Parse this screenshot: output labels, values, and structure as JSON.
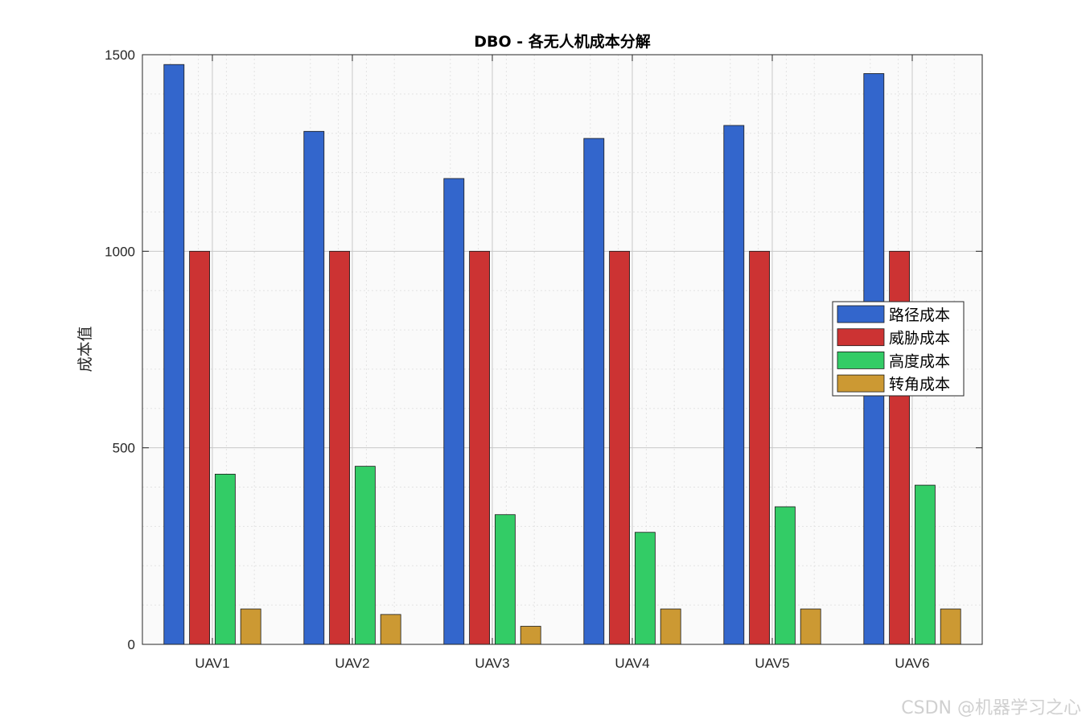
{
  "chart_data": {
    "type": "bar",
    "title": "DBO - 各无人机成本分解",
    "xlabel": "",
    "ylabel": "成本值",
    "categories": [
      "UAV1",
      "UAV2",
      "UAV3",
      "UAV4",
      "UAV5",
      "UAV6"
    ],
    "ylim": [
      0,
      1500
    ],
    "yticks": [
      0,
      500,
      1000,
      1500
    ],
    "grid": true,
    "legend_position": "right",
    "series": [
      {
        "name": "路径成本",
        "color": "#3366cc",
        "values": [
          1475,
          1305,
          1185,
          1287,
          1320,
          1452
        ]
      },
      {
        "name": "威胁成本",
        "color": "#cc3333",
        "values": [
          1000,
          1000,
          1000,
          1000,
          1000,
          1000
        ]
      },
      {
        "name": "高度成本",
        "color": "#33cc66",
        "values": [
          433,
          453,
          330,
          285,
          350,
          405
        ]
      },
      {
        "name": "转角成本",
        "color": "#cc9933",
        "values": [
          90,
          76,
          46,
          90,
          90,
          90
        ]
      }
    ]
  },
  "watermark": "CSDN @机器学习之心"
}
